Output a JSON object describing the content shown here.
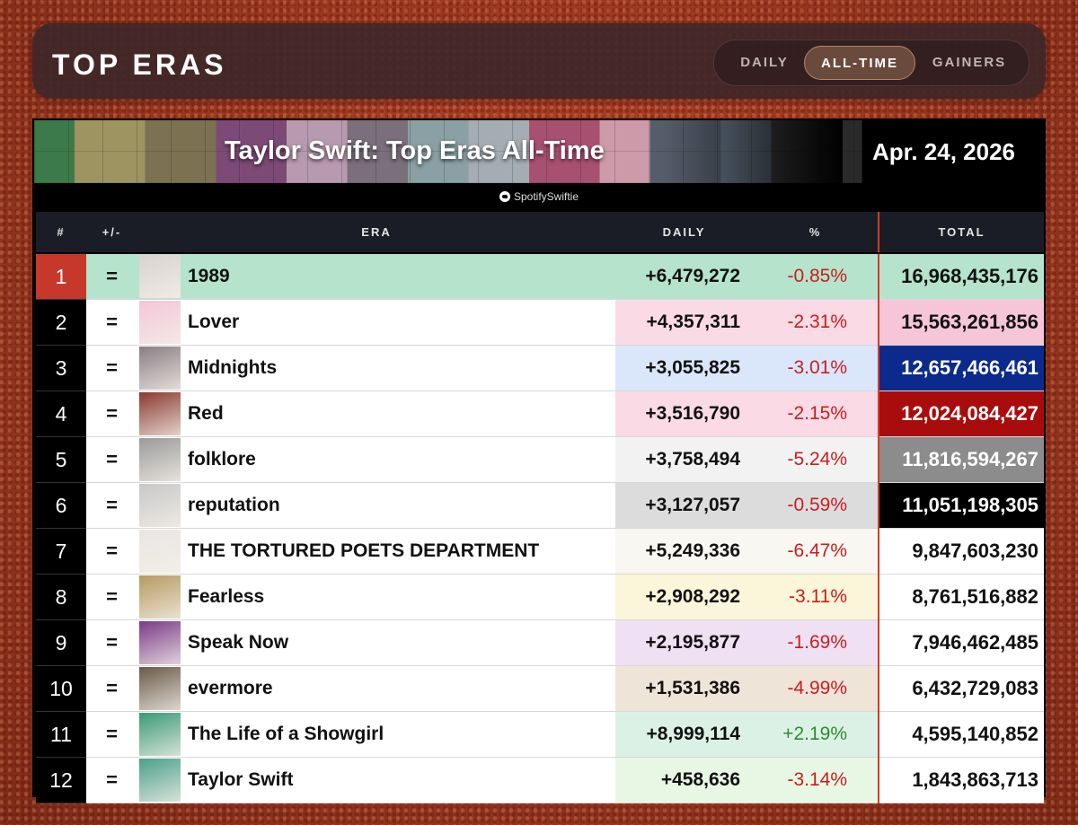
{
  "header": {
    "title": "TOP ERAS",
    "tabs": [
      {
        "label": "DAILY",
        "active": false
      },
      {
        "label": "ALL-TIME",
        "active": true
      },
      {
        "label": "GAINERS",
        "active": false
      }
    ]
  },
  "banner": {
    "title": "Taylor Swift: Top Eras All-Time",
    "date": "Apr. 24, 2026",
    "credit": "SpotifySwiftie"
  },
  "table": {
    "columns": [
      "#",
      "+/-",
      "ERA",
      "DAILY",
      "%",
      "TOTAL"
    ],
    "rows": [
      {
        "rank": "1",
        "change": "=",
        "era": "1989",
        "daily": "+6,479,272",
        "pct": "-0.85%",
        "total": "16,968,435,176",
        "art": "#d9d3cf",
        "daily_bg": "#b5e3cc",
        "total_bg": "#b5e3cc",
        "total_fg": "#111111"
      },
      {
        "rank": "2",
        "change": "=",
        "era": "Lover",
        "daily": "+4,357,311",
        "pct": "-2.31%",
        "total": "15,563,261,856",
        "art": "#f4c6d8",
        "daily_bg": "#fadbe5",
        "total_bg": "#f6c6d8",
        "total_fg": "#111111"
      },
      {
        "rank": "3",
        "change": "=",
        "era": "Midnights",
        "daily": "+3,055,825",
        "pct": "-3.01%",
        "total": "12,657,466,461",
        "art": "#8a7e84",
        "daily_bg": "#dae6fa",
        "total_bg": "#0c2a8c",
        "total_fg": "#ffffff"
      },
      {
        "rank": "4",
        "change": "=",
        "era": "Red",
        "daily": "+3,516,790",
        "pct": "-2.15%",
        "total": "12,024,084,427",
        "art": "#8a3a30",
        "daily_bg": "#fadbe5",
        "total_bg": "#a80c0c",
        "total_fg": "#ffffff"
      },
      {
        "rank": "5",
        "change": "=",
        "era": "folklore",
        "daily": "+3,758,494",
        "pct": "-5.24%",
        "total": "11,816,594,267",
        "art": "#9a9a9a",
        "daily_bg": "#f2f2f2",
        "total_bg": "#8c8c8c",
        "total_fg": "#ffffff"
      },
      {
        "rank": "6",
        "change": "=",
        "era": "reputation",
        "daily": "+3,127,057",
        "pct": "-0.59%",
        "total": "11,051,198,305",
        "art": "#c8c8c8",
        "daily_bg": "#dcdcdc",
        "total_bg": "#000000",
        "total_fg": "#ffffff"
      },
      {
        "rank": "7",
        "change": "=",
        "era": "THE TORTURED POETS DEPARTMENT",
        "daily": "+5,249,336",
        "pct": "-6.47%",
        "total": "9,847,603,230",
        "art": "#e8e6e4",
        "daily_bg": "#f8f7f2",
        "total_bg": "#ffffff",
        "total_fg": "#111111"
      },
      {
        "rank": "8",
        "change": "=",
        "era": "Fearless",
        "daily": "+2,908,292",
        "pct": "-3.11%",
        "total": "8,761,516,882",
        "art": "#b69a60",
        "daily_bg": "#fbf5da",
        "total_bg": "#ffffff",
        "total_fg": "#111111"
      },
      {
        "rank": "9",
        "change": "=",
        "era": "Speak Now",
        "daily": "+2,195,877",
        "pct": "-1.69%",
        "total": "7,946,462,485",
        "art": "#7a3a8a",
        "daily_bg": "#f0e0f4",
        "total_bg": "#ffffff",
        "total_fg": "#111111"
      },
      {
        "rank": "10",
        "change": "=",
        "era": "evermore",
        "daily": "+1,531,386",
        "pct": "-4.99%",
        "total": "6,432,729,083",
        "art": "#6a5a48",
        "daily_bg": "#efe4d8",
        "total_bg": "#ffffff",
        "total_fg": "#111111"
      },
      {
        "rank": "11",
        "change": "=",
        "era": "The Life of a Showgirl",
        "daily": "+8,999,114",
        "pct": "+2.19%",
        "total": "4,595,140,852",
        "art": "#3a9a78",
        "daily_bg": "#dcf1e6",
        "total_bg": "#ffffff",
        "total_fg": "#111111",
        "pct_positive": true
      },
      {
        "rank": "12",
        "change": "=",
        "era": "Taylor Swift",
        "daily": "+458,636",
        "pct": "-3.14%",
        "total": "1,843,863,713",
        "art": "#4aa08a",
        "daily_bg": "#e8f6e4",
        "total_bg": "#ffffff",
        "total_fg": "#111111"
      }
    ]
  }
}
